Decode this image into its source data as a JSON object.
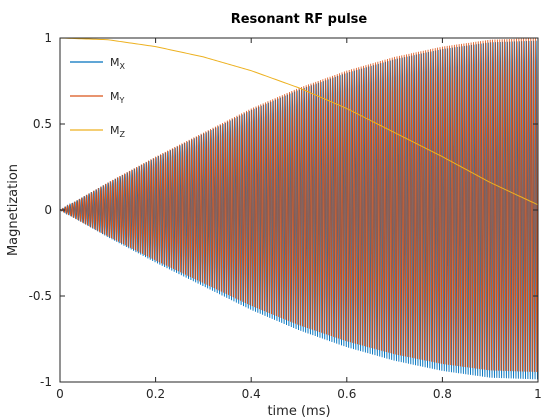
{
  "chart_data": {
    "type": "line",
    "title": "Resonant RF pulse",
    "xlabel": "time (ms)",
    "ylabel": "Magnetization",
    "xlim": [
      0,
      1
    ],
    "ylim": [
      -1,
      1
    ],
    "xticks": [
      0,
      0.2,
      0.4,
      0.6,
      0.8,
      1
    ],
    "xtick_labels": [
      "0",
      "0.2",
      "0.4",
      "0.6",
      "0.8",
      "1"
    ],
    "yticks": [
      -1,
      -0.5,
      0,
      0.5,
      1
    ],
    "ytick_labels": [
      "-1",
      "-0.5",
      "0",
      "0.5",
      "1"
    ],
    "grid": false,
    "legend_position": "top-left",
    "series": [
      {
        "name": "M",
        "subscript": "X",
        "color": "#0072BD",
        "style": "fast oscillation within envelope ±sin(πt/2)",
        "envelope": {
          "x": [
            0,
            0.1,
            0.2,
            0.3,
            0.4,
            0.5,
            0.6,
            0.7,
            0.8,
            0.9,
            1.0
          ],
          "y": [
            0,
            0.16,
            0.31,
            0.45,
            0.59,
            0.71,
            0.81,
            0.89,
            0.95,
            0.99,
            1.0
          ]
        }
      },
      {
        "name": "M",
        "subscript": "Y",
        "color": "#D95319",
        "style": "fast oscillation within envelope ±sin(πt/2)",
        "envelope": {
          "x": [
            0,
            0.1,
            0.2,
            0.3,
            0.4,
            0.5,
            0.6,
            0.7,
            0.8,
            0.9,
            1.0
          ],
          "y": [
            0,
            0.16,
            0.31,
            0.45,
            0.59,
            0.71,
            0.81,
            0.89,
            0.95,
            0.99,
            1.0
          ]
        }
      },
      {
        "name": "M",
        "subscript": "Z",
        "color": "#EDB120",
        "x": [
          0,
          0.1,
          0.2,
          0.3,
          0.4,
          0.5,
          0.6,
          0.7,
          0.8,
          0.9,
          1.0
        ],
        "y": [
          1.0,
          0.99,
          0.95,
          0.89,
          0.81,
          0.71,
          0.59,
          0.45,
          0.31,
          0.16,
          0.03
        ]
      }
    ]
  }
}
